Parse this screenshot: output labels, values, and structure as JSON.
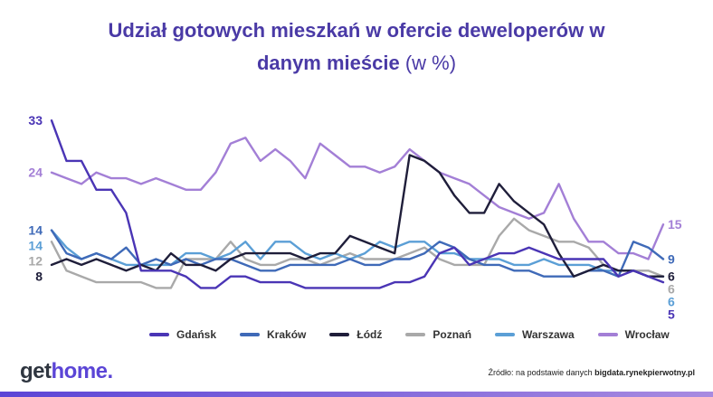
{
  "title": {
    "line1": "Udział gotowych mieszkań w ofercie deweloperów w",
    "line2_main": "danym mieście",
    "line2_unit": "(w %)"
  },
  "chart_data": {
    "type": "line",
    "x_count": 42,
    "ylim": [
      0,
      36
    ],
    "grid": false,
    "legend_placement": "bottom",
    "series": [
      {
        "name": "Gdańsk",
        "color": "#4a35b5",
        "start_label": "33",
        "end_label": "5",
        "values": [
          33,
          26,
          26,
          21,
          21,
          17,
          7,
          7,
          7,
          6,
          4,
          4,
          6,
          6,
          5,
          5,
          5,
          4,
          4,
          4,
          4,
          4,
          4,
          5,
          5,
          6,
          10,
          11,
          8,
          9,
          10,
          10,
          11,
          10,
          9,
          9,
          9,
          9,
          6,
          7,
          6,
          5
        ]
      },
      {
        "name": "Kraków",
        "color": "#3f6ab8",
        "start_label": "14",
        "end_label": "9",
        "values": [
          14,
          10,
          9,
          10,
          9,
          11,
          8,
          9,
          8,
          9,
          8,
          9,
          9,
          8,
          7,
          7,
          8,
          8,
          8,
          8,
          9,
          8,
          8,
          9,
          9,
          10,
          12,
          11,
          9,
          8,
          8,
          7,
          7,
          6,
          6,
          6,
          7,
          7,
          6,
          12,
          11,
          9
        ]
      },
      {
        "name": "Łódź",
        "color": "#1f1e3a",
        "start_label": "8",
        "end_label": "6",
        "values": [
          8,
          9,
          8,
          9,
          8,
          7,
          8,
          7,
          10,
          8,
          8,
          7,
          9,
          10,
          10,
          10,
          10,
          9,
          10,
          10,
          13,
          12,
          11,
          10,
          27,
          26,
          24,
          20,
          17,
          17,
          22,
          19,
          17,
          15,
          10,
          6,
          7,
          8,
          7,
          7,
          6,
          6
        ]
      },
      {
        "name": "Poznań",
        "color": "#a9a9a9",
        "start_label": "12",
        "end_label": "6",
        "values": [
          12,
          7,
          6,
          5,
          5,
          5,
          5,
          4,
          4,
          9,
          9,
          9,
          12,
          9,
          8,
          8,
          9,
          9,
          8,
          9,
          10,
          9,
          9,
          9,
          10,
          11,
          9,
          8,
          8,
          8,
          13,
          16,
          14,
          13,
          12,
          12,
          11,
          8,
          7,
          7,
          7,
          6
        ]
      },
      {
        "name": "Warszawa",
        "color": "#5b9fd6",
        "start_label": "14",
        "end_label": "6",
        "values": [
          14,
          11,
          9,
          10,
          9,
          8,
          8,
          8,
          8,
          10,
          10,
          9,
          10,
          12,
          9,
          12,
          12,
          10,
          9,
          10,
          9,
          10,
          12,
          11,
          12,
          12,
          10,
          10,
          9,
          9,
          9,
          8,
          8,
          9,
          8,
          8,
          8,
          7,
          7,
          7,
          6,
          6
        ]
      },
      {
        "name": "Wrocław",
        "color": "#a37fd6",
        "start_label": "24",
        "end_label": "15",
        "values": [
          24,
          23,
          22,
          24,
          23,
          23,
          22,
          23,
          22,
          21,
          21,
          24,
          29,
          30,
          26,
          28,
          26,
          23,
          29,
          27,
          25,
          25,
          24,
          25,
          28,
          26,
          24,
          23,
          22,
          20,
          18,
          17,
          16,
          17,
          22,
          16,
          12,
          12,
          10,
          10,
          9,
          15
        ]
      }
    ]
  },
  "logo": {
    "part1": "get",
    "part2": "home."
  },
  "source": {
    "prefix": "Źródło: na podstawie danych",
    "site": "bigdata.rynekpierwotny.pl"
  }
}
